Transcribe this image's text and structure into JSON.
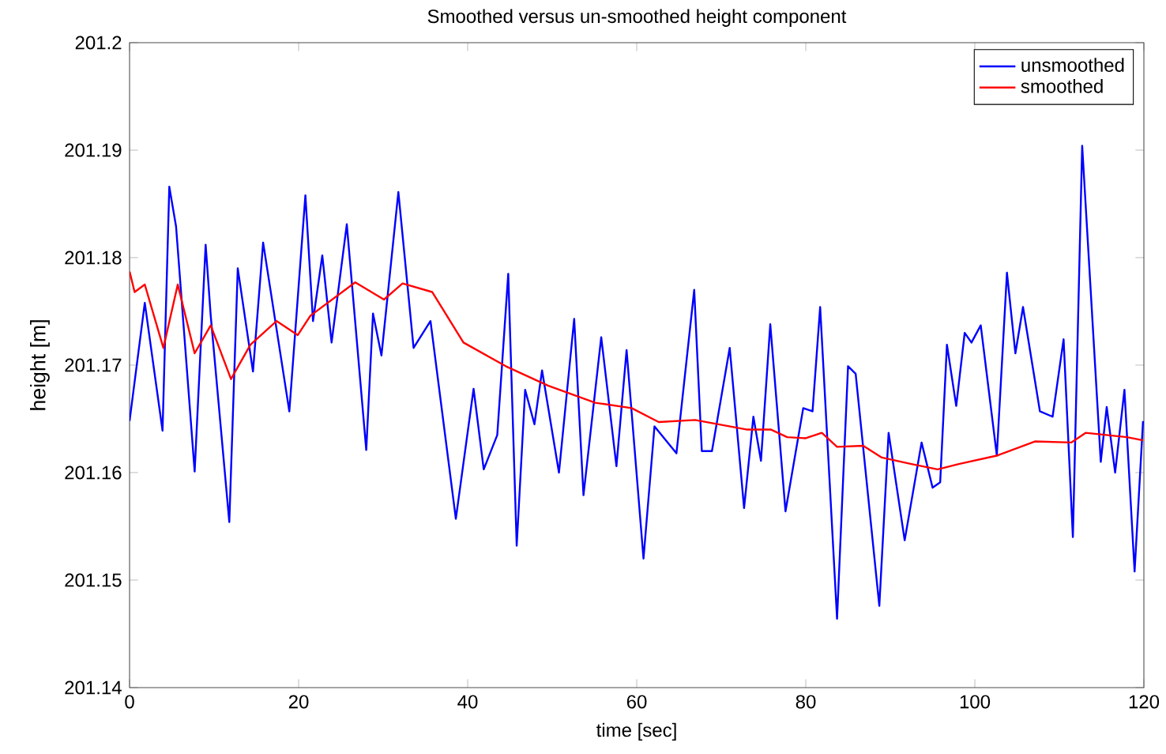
{
  "chart_data": {
    "type": "line",
    "title": "Smoothed versus un-smoothed height component",
    "xlabel": "time [sec]",
    "ylabel": "height [m]",
    "xlim": [
      0,
      120
    ],
    "ylim": [
      201.14,
      201.2
    ],
    "xticks": [
      0,
      20,
      40,
      60,
      80,
      100,
      120
    ],
    "yticks": [
      201.14,
      201.15,
      201.16,
      201.17,
      201.18,
      201.19,
      201.2
    ],
    "grid": false,
    "legend": "top right",
    "series": [
      {
        "name": "unsmoothed",
        "color": "#0000ff",
        "x": [
          0,
          1.8,
          3.9,
          4.7,
          5.5,
          7.7,
          9.0,
          9.6,
          11.8,
          12.8,
          14.6,
          15.8,
          18.9,
          20.8,
          21.7,
          22.8,
          23.9,
          25.7,
          28.0,
          28.8,
          29.8,
          31.8,
          33.6,
          35.6,
          38.6,
          40.7,
          41.9,
          43.5,
          44.8,
          45.8,
          46.8,
          47.9,
          48.8,
          50.8,
          52.6,
          53.7,
          55.8,
          57.6,
          58.8,
          60.8,
          62.1,
          64.7,
          66.8,
          67.7,
          68.9,
          71.0,
          72.7,
          73.8,
          74.7,
          75.8,
          77.6,
          79.7,
          80.8,
          81.7,
          83.7,
          85.0,
          85.9,
          88.7,
          89.8,
          91.7,
          93.7,
          95.0,
          95.9,
          96.7,
          97.8,
          98.8,
          99.6,
          100.7,
          102.6,
          103.8,
          104.8,
          105.7,
          107.7,
          109.2,
          110.5,
          111.6,
          112.7,
          114.9,
          115.6,
          116.6,
          117.7,
          118.9,
          119.9
        ],
        "values": [
          201.1648,
          201.1758,
          201.1639,
          201.1866,
          201.1829,
          201.1601,
          201.1812,
          201.1746,
          201.1554,
          201.179,
          201.1694,
          201.1814,
          201.1657,
          201.1858,
          201.1741,
          201.1802,
          201.1721,
          201.1831,
          201.1621,
          201.1748,
          201.1709,
          201.1861,
          201.1716,
          201.1741,
          201.1557,
          201.1678,
          201.1603,
          201.1635,
          201.1785,
          201.1532,
          201.1677,
          201.1645,
          201.1695,
          201.16,
          201.1743,
          201.1579,
          201.1726,
          201.1606,
          201.1714,
          201.152,
          201.1643,
          201.1618,
          201.177,
          201.162,
          201.162,
          201.1716,
          201.1567,
          201.1652,
          201.1611,
          201.1738,
          201.1564,
          201.166,
          201.1657,
          201.1754,
          201.1464,
          201.1699,
          201.1692,
          201.1476,
          201.1637,
          201.1537,
          201.1628,
          201.1586,
          201.1591,
          201.1719,
          201.1662,
          201.173,
          201.1721,
          201.1737,
          201.1616,
          201.1786,
          201.1711,
          201.1754,
          201.1657,
          201.1652,
          201.1724,
          201.154,
          201.1904,
          201.161,
          201.1661,
          201.16,
          201.1677,
          201.1508,
          201.1648
        ]
      },
      {
        "name": "smoothed",
        "color": "#ff0000",
        "x": [
          0,
          0.6,
          1.8,
          4.0,
          5.7,
          7.7,
          9.6,
          12.0,
          14.3,
          17.4,
          19.9,
          21.4,
          26.7,
          30.1,
          32.3,
          35.8,
          39.5,
          44.5,
          49.5,
          55.1,
          59.4,
          62.6,
          66.9,
          73.1,
          75.9,
          77.8,
          80.0,
          81.9,
          83.7,
          86.8,
          89.0,
          92.5,
          95.6,
          98.1,
          102.7,
          107.1,
          111.4,
          113.1,
          118.0,
          119.9
        ],
        "values": [
          201.1787,
          201.1768,
          201.1775,
          201.1716,
          201.1775,
          201.1711,
          201.1737,
          201.1687,
          201.1719,
          201.1741,
          201.1728,
          201.1746,
          201.1777,
          201.1761,
          201.1776,
          201.1768,
          201.1721,
          201.1699,
          201.1681,
          201.1665,
          201.166,
          201.1647,
          201.1649,
          201.164,
          201.164,
          201.1633,
          201.1632,
          201.1637,
          201.1624,
          201.1625,
          201.1614,
          201.1608,
          201.1603,
          201.1608,
          201.1616,
          201.1629,
          201.1628,
          201.1637,
          201.1633,
          201.163
        ]
      }
    ]
  }
}
